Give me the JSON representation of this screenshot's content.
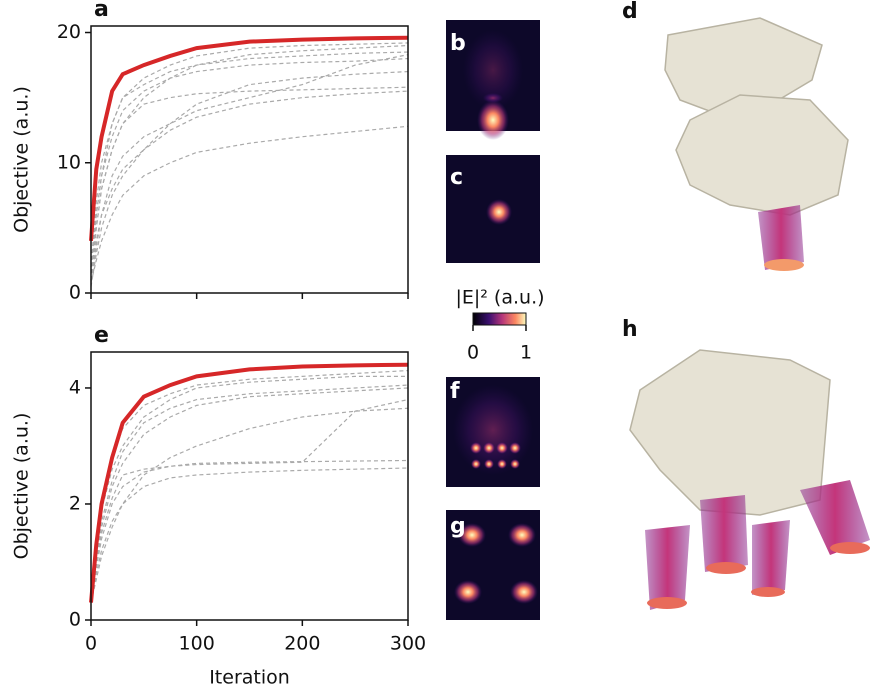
{
  "chart_data": [
    {
      "type": "line",
      "panel_label": "a",
      "ylabel": "Objective (a.u.)",
      "xtick_labels": false,
      "x": [
        0,
        5,
        10,
        20,
        30,
        50,
        75,
        100,
        150,
        200,
        250,
        300
      ],
      "xlim": [
        0,
        300
      ],
      "xticks": [
        0,
        100,
        200,
        300
      ],
      "ylim": [
        0,
        20.5
      ],
      "yticks": [
        0,
        10,
        20
      ],
      "series": [
        {
          "color": "#aaaaaa",
          "dashed": true,
          "values": [
            1,
            5,
            8,
            11,
            13,
            15,
            16.5,
            17.5,
            18.3,
            18.6,
            18.8,
            19
          ]
        },
        {
          "color": "#aaaaaa",
          "dashed": true,
          "values": [
            2,
            6,
            9,
            12,
            14,
            15.5,
            16.5,
            17,
            17.5,
            17.7,
            17.8,
            18
          ]
        },
        {
          "color": "#aaaaaa",
          "dashed": true,
          "values": [
            0.5,
            3,
            5,
            7.5,
            9,
            11,
            12.5,
            13.5,
            14.5,
            15,
            15.3,
            15.5
          ]
        },
        {
          "color": "#aaaaaa",
          "dashed": true,
          "values": [
            1,
            4,
            6,
            8,
            9.5,
            11,
            13,
            14.5,
            16,
            16.5,
            16.8,
            17
          ]
        },
        {
          "color": "#aaaaaa",
          "dashed": true,
          "values": [
            1.5,
            6,
            9,
            13,
            15,
            16,
            17,
            17.5,
            18,
            18.2,
            18.4,
            18.5
          ]
        },
        {
          "color": "#aaaaaa",
          "dashed": true,
          "values": [
            0.8,
            2.5,
            4,
            6,
            7.5,
            9,
            10,
            10.8,
            11.5,
            12,
            12.4,
            12.8
          ]
        },
        {
          "color": "#aaaaaa",
          "dashed": true,
          "values": [
            1,
            5,
            8,
            11,
            13,
            14.5,
            15,
            15.3,
            15.5,
            15.6,
            15.7,
            15.8
          ]
        },
        {
          "color": "#aaaaaa",
          "dashed": true,
          "values": [
            2,
            7,
            10,
            13,
            15,
            16.5,
            17.5,
            18.2,
            18.8,
            19,
            19.1,
            19.2
          ]
        },
        {
          "color": "#aaaaaa",
          "dashed": true,
          "values": [
            1,
            3.5,
            6,
            9,
            10.5,
            12,
            13,
            14,
            15,
            16,
            17.5,
            18.3
          ]
        },
        {
          "color": "#d62728",
          "dashed": false,
          "values": [
            4,
            9.5,
            12,
            15.5,
            16.8,
            17.5,
            18.2,
            18.8,
            19.3,
            19.45,
            19.55,
            19.6
          ]
        }
      ]
    },
    {
      "type": "line",
      "panel_label": "e",
      "ylabel": "Objective (a.u.)",
      "xlabel": "Iteration",
      "xtick_labels": true,
      "x": [
        0,
        5,
        10,
        20,
        30,
        50,
        75,
        100,
        150,
        200,
        250,
        300
      ],
      "xlim": [
        0,
        300
      ],
      "xticks": [
        0,
        100,
        200,
        300
      ],
      "ylim": [
        0,
        4.62
      ],
      "yticks": [
        0,
        2,
        4
      ],
      "series": [
        {
          "color": "#aaaaaa",
          "dashed": true,
          "values": [
            0.3,
            1.0,
            1.6,
            2.3,
            2.7,
            3.2,
            3.5,
            3.7,
            3.85,
            3.9,
            3.95,
            4.0
          ]
        },
        {
          "color": "#aaaaaa",
          "dashed": true,
          "values": [
            0.3,
            1.2,
            1.9,
            2.6,
            3.0,
            3.5,
            3.8,
            4.0,
            4.1,
            4.15,
            4.2,
            4.2
          ]
        },
        {
          "color": "#aaaaaa",
          "dashed": true,
          "values": [
            0.3,
            0.9,
            1.4,
            2.0,
            2.3,
            2.55,
            2.65,
            2.7,
            2.72,
            2.73,
            2.74,
            2.75
          ]
        },
        {
          "color": "#aaaaaa",
          "dashed": true,
          "values": [
            0.3,
            0.8,
            1.2,
            1.7,
            2.0,
            2.3,
            2.45,
            2.5,
            2.55,
            2.58,
            2.6,
            2.62
          ]
        },
        {
          "color": "#aaaaaa",
          "dashed": true,
          "values": [
            0.3,
            1.1,
            1.7,
            2.4,
            2.9,
            3.4,
            3.65,
            3.8,
            3.9,
            3.95,
            4.0,
            4.05
          ]
        },
        {
          "color": "#aaaaaa",
          "dashed": true,
          "values": [
            0.3,
            0.7,
            1.1,
            1.6,
            2.0,
            2.5,
            2.8,
            3.0,
            3.3,
            3.5,
            3.6,
            3.65
          ]
        },
        {
          "color": "#aaaaaa",
          "dashed": true,
          "values": [
            0.3,
            1.0,
            1.5,
            2.1,
            2.5,
            2.6,
            2.65,
            2.68,
            2.7,
            2.72,
            3.6,
            3.8
          ]
        },
        {
          "color": "#aaaaaa",
          "dashed": true,
          "values": [
            0.3,
            1.3,
            2.0,
            2.8,
            3.3,
            3.7,
            3.9,
            4.05,
            4.15,
            4.2,
            4.25,
            4.3
          ]
        },
        {
          "color": "#d62728",
          "dashed": false,
          "values": [
            0.3,
            1.3,
            2.0,
            2.8,
            3.4,
            3.85,
            4.05,
            4.2,
            4.32,
            4.37,
            4.39,
            4.4
          ]
        }
      ]
    }
  ],
  "field_maps": [
    {
      "label": "b"
    },
    {
      "label": "c"
    },
    {
      "label": "f"
    },
    {
      "label": "g"
    }
  ],
  "renders": [
    {
      "label": "d"
    },
    {
      "label": "h"
    }
  ],
  "colorbar": {
    "label": "|E|² (a.u.)",
    "lim": [
      0,
      1
    ],
    "ticks": [
      0,
      1
    ]
  }
}
